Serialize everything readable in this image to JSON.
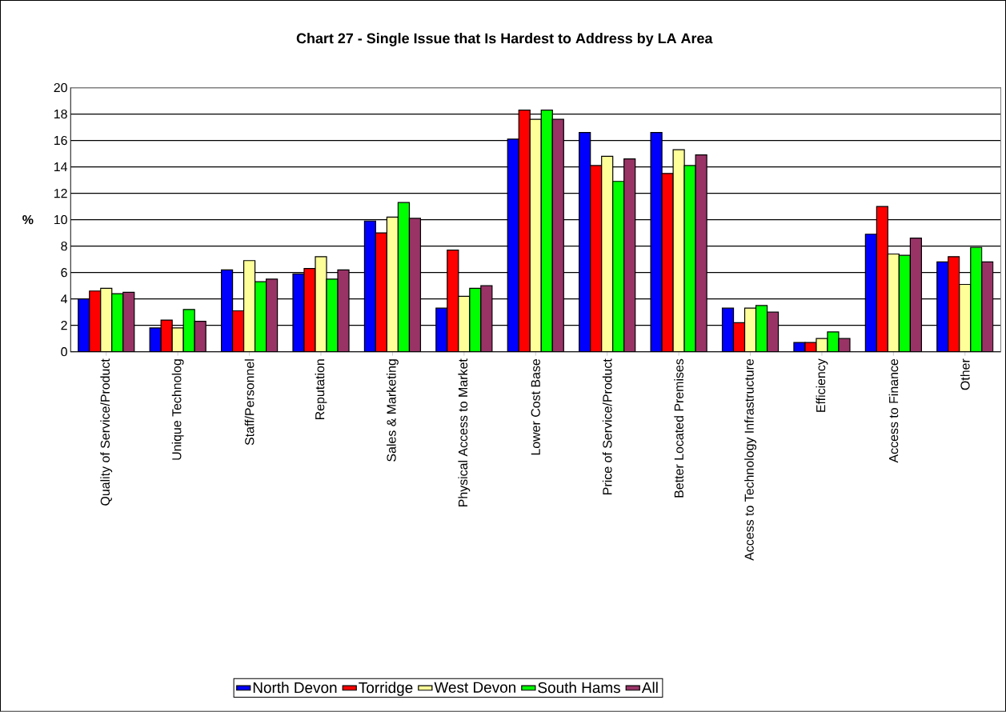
{
  "chart_data": {
    "type": "bar",
    "title": "Chart 27 - Single Issue that Is Hardest to Address by LA Area",
    "ylabel": "%",
    "categories": [
      "Quality of Service/Product",
      "Unique Technolog",
      "Staff/Personnel",
      "Reputation",
      "Sales & Marketing",
      "Physical Access to Market",
      "Lower Cost Base",
      "Price of Service/Product",
      "Better Located Premises",
      "Access to Technology Infrastructure",
      "Efficiency",
      "Access to Finance",
      "Other"
    ],
    "series": [
      {
        "name": "North Devon",
        "color": "#0000ff",
        "values": [
          4.0,
          1.8,
          6.2,
          5.9,
          9.9,
          3.3,
          16.1,
          16.6,
          16.6,
          3.3,
          0.7,
          8.9,
          6.8
        ]
      },
      {
        "name": "Torridge",
        "color": "#ff0000",
        "values": [
          4.6,
          2.4,
          3.1,
          6.3,
          9.0,
          7.7,
          18.3,
          14.1,
          13.5,
          2.2,
          0.7,
          11.0,
          7.2
        ]
      },
      {
        "name": "West Devon",
        "color": "#ffff99",
        "values": [
          4.8,
          1.8,
          6.9,
          7.2,
          10.2,
          4.2,
          17.6,
          14.8,
          15.3,
          3.3,
          1.0,
          7.4,
          5.1
        ]
      },
      {
        "name": "South Hams",
        "color": "#00ff00",
        "values": [
          4.4,
          3.2,
          5.3,
          5.5,
          11.3,
          4.8,
          18.3,
          12.9,
          14.1,
          3.5,
          1.5,
          7.3,
          7.9
        ]
      },
      {
        "name": "All",
        "color": "#993366",
        "values": [
          4.5,
          2.3,
          5.5,
          6.2,
          10.1,
          5.0,
          17.6,
          14.6,
          14.9,
          3.0,
          1.0,
          8.6,
          6.8
        ]
      }
    ],
    "ylim": [
      0,
      20
    ],
    "yticks": [
      0,
      2,
      4,
      6,
      8,
      10,
      12,
      14,
      16,
      18,
      20
    ],
    "grid": "y",
    "legend": "bottom"
  }
}
